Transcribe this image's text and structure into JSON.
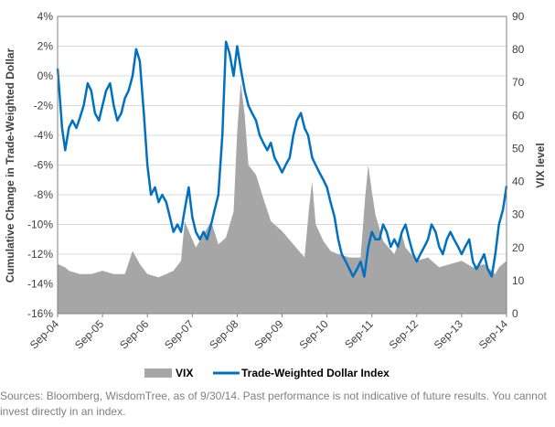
{
  "chart_data": {
    "type": "line",
    "title": "",
    "ylabel_left": "Cumulative Change in Trade-Weighted Dollar",
    "ylabel_right": "VIX level",
    "xlabel": "",
    "x_ticks": [
      "Sep-04",
      "Sep-05",
      "Sep-06",
      "Sep-07",
      "Sep-08",
      "Sep-09",
      "Sep-10",
      "Sep-11",
      "Sep-12",
      "Sep-13",
      "Sep-14"
    ],
    "y_left": {
      "min": -16,
      "max": 4,
      "step": 2,
      "unit": "%",
      "tick_labels": [
        "4%",
        "2%",
        "0%",
        "-2%",
        "-4%",
        "-6%",
        "-8%",
        "-10%",
        "-12%",
        "-14%",
        "-16%"
      ]
    },
    "y_right": {
      "min": 0,
      "max": 90,
      "step": 10,
      "tick_labels": [
        "90",
        "80",
        "70",
        "60",
        "50",
        "40",
        "30",
        "20",
        "10",
        "0"
      ]
    },
    "grid": "horizontal",
    "legend_position": "bottom",
    "colors": {
      "vix": "#a6a6a6",
      "dollar": "#0070c0",
      "grid": "#d9d9d9",
      "axis": "#808080"
    },
    "series": [
      {
        "name": "VIX",
        "type": "area",
        "axis": "right",
        "x": [
          2004.75,
          2004.92,
          2005.0,
          2005.25,
          2005.5,
          2005.75,
          2006.0,
          2006.25,
          2006.42,
          2006.58,
          2006.75,
          2007.0,
          2007.17,
          2007.33,
          2007.5,
          2007.58,
          2007.67,
          2007.83,
          2008.0,
          2008.17,
          2008.33,
          2008.5,
          2008.67,
          2008.75,
          2008.83,
          2008.92,
          2009.0,
          2009.17,
          2009.33,
          2009.5,
          2009.75,
          2010.0,
          2010.25,
          2010.35,
          2010.42,
          2010.5,
          2010.67,
          2010.83,
          2011.0,
          2011.25,
          2011.5,
          2011.6,
          2011.67,
          2011.75,
          2011.83,
          2012.0,
          2012.25,
          2012.42,
          2012.5,
          2012.75,
          2013.0,
          2013.25,
          2013.5,
          2013.75,
          2014.0,
          2014.25,
          2014.5,
          2014.58,
          2014.75
        ],
        "values": [
          15,
          14,
          13,
          12,
          12,
          13,
          12,
          12,
          19,
          15,
          12,
          11,
          12,
          13,
          16,
          28,
          25,
          20,
          24,
          28,
          21,
          23,
          31,
          55,
          70,
          60,
          45,
          42,
          35,
          28,
          25,
          21,
          17,
          32,
          40,
          27,
          22,
          19,
          18,
          17,
          17,
          35,
          45,
          37,
          30,
          22,
          18,
          24,
          20,
          16,
          17,
          14,
          15,
          16,
          14,
          15,
          12,
          14,
          16
        ]
      },
      {
        "name": "Trade-Weighted Dollar Index",
        "type": "line",
        "axis": "left",
        "unit": "%",
        "x": [
          2004.75,
          2004.8,
          2004.85,
          2004.92,
          2005.0,
          2005.08,
          2005.17,
          2005.25,
          2005.33,
          2005.42,
          2005.5,
          2005.58,
          2005.67,
          2005.75,
          2005.83,
          2005.92,
          2006.0,
          2006.08,
          2006.17,
          2006.25,
          2006.33,
          2006.42,
          2006.5,
          2006.58,
          2006.67,
          2006.75,
          2006.83,
          2006.92,
          2007.0,
          2007.08,
          2007.17,
          2007.25,
          2007.33,
          2007.42,
          2007.5,
          2007.58,
          2007.67,
          2007.75,
          2007.83,
          2007.92,
          2008.0,
          2008.08,
          2008.17,
          2008.25,
          2008.33,
          2008.42,
          2008.5,
          2008.58,
          2008.67,
          2008.75,
          2008.83,
          2008.92,
          2009.0,
          2009.08,
          2009.17,
          2009.25,
          2009.33,
          2009.42,
          2009.5,
          2009.58,
          2009.67,
          2009.75,
          2009.83,
          2009.92,
          2010.0,
          2010.08,
          2010.17,
          2010.25,
          2010.33,
          2010.42,
          2010.5,
          2010.58,
          2010.67,
          2010.75,
          2010.83,
          2010.92,
          2011.0,
          2011.08,
          2011.17,
          2011.25,
          2011.33,
          2011.42,
          2011.5,
          2011.58,
          2011.67,
          2011.75,
          2011.83,
          2011.92,
          2012.0,
          2012.08,
          2012.17,
          2012.25,
          2012.33,
          2012.42,
          2012.5,
          2012.58,
          2012.67,
          2012.75,
          2012.83,
          2012.92,
          2013.0,
          2013.08,
          2013.17,
          2013.25,
          2013.33,
          2013.42,
          2013.5,
          2013.58,
          2013.67,
          2013.75,
          2013.83,
          2013.92,
          2014.0,
          2014.08,
          2014.17,
          2014.25,
          2014.33,
          2014.42,
          2014.5,
          2014.58,
          2014.67,
          2014.75
        ],
        "values": [
          0.5,
          -1.5,
          -3.5,
          -5.0,
          -3.5,
          -3.0,
          -3.5,
          -2.8,
          -2.0,
          -0.5,
          -1.0,
          -2.5,
          -3.0,
          -2.0,
          -1.0,
          -0.5,
          -2.0,
          -3.0,
          -2.5,
          -1.5,
          -1.0,
          0.0,
          1.8,
          1.0,
          -2.5,
          -6.0,
          -8.0,
          -7.5,
          -8.5,
          -8.0,
          -8.5,
          -9.5,
          -10.5,
          -10.0,
          -10.5,
          -9.0,
          -7.5,
          -9.5,
          -10.5,
          -11.0,
          -10.5,
          -11.0,
          -10.0,
          -9.0,
          -8.0,
          -4.0,
          2.3,
          1.5,
          0.0,
          2.0,
          0.5,
          -1.0,
          -2.0,
          -2.5,
          -3.0,
          -4.0,
          -4.5,
          -5.0,
          -4.5,
          -5.5,
          -6.0,
          -6.5,
          -6.0,
          -5.5,
          -4.0,
          -3.0,
          -2.5,
          -3.5,
          -4.0,
          -5.5,
          -6.0,
          -6.5,
          -7.0,
          -7.5,
          -8.5,
          -9.5,
          -11.0,
          -12.0,
          -12.5,
          -13.0,
          -13.5,
          -13.0,
          -12.5,
          -13.5,
          -11.5,
          -10.5,
          -11.0,
          -11.0,
          -10.0,
          -10.5,
          -11.5,
          -11.0,
          -11.5,
          -10.5,
          -10.0,
          -11.0,
          -12.0,
          -12.5,
          -12.0,
          -11.5,
          -11.0,
          -10.0,
          -10.5,
          -11.5,
          -12.0,
          -11.0,
          -10.5,
          -11.0,
          -11.5,
          -12.0,
          -11.5,
          -11.0,
          -12.5,
          -13.0,
          -12.5,
          -12.0,
          -13.0,
          -13.5,
          -12.0,
          -10.0,
          -9.0,
          -7.4
        ]
      }
    ],
    "source_note": "Sources: Bloomberg, WisdomTree, as of 9/30/14. Past performance is not indicative of future results. You cannot invest directly in an index."
  }
}
